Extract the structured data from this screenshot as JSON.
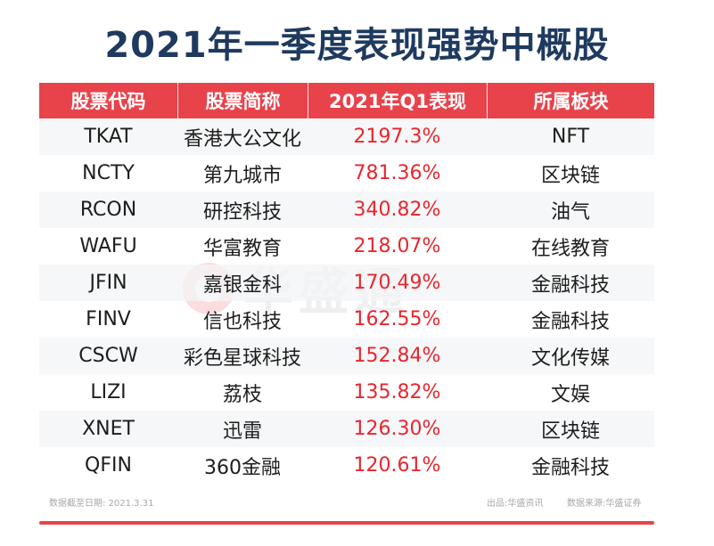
{
  "title": "2021年一季度表现强势中概股",
  "watermark": "华盛通",
  "headers": [
    "股票代码",
    "股票简称",
    "2021年Q1表现",
    "所属板块"
  ],
  "rows": [
    {
      "code": "TKAT",
      "name": "香港大公文化",
      "perf": "2197.3%",
      "sector": "NFT"
    },
    {
      "code": "NCTY",
      "name": "第九城市",
      "perf": "781.36%",
      "sector": "区块链"
    },
    {
      "code": "RCON",
      "name": "研控科技",
      "perf": "340.82%",
      "sector": "油气"
    },
    {
      "code": "WAFU",
      "name": "华富教育",
      "perf": "218.07%",
      "sector": "在线教育"
    },
    {
      "code": "JFIN",
      "name": "嘉银金科",
      "perf": "170.49%",
      "sector": "金融科技"
    },
    {
      "code": "FINV",
      "name": "信也科技",
      "perf": "162.55%",
      "sector": "金融科技"
    },
    {
      "code": "CSCW",
      "name": "彩色星球科技",
      "perf": "152.84%",
      "sector": "文化传媒"
    },
    {
      "code": "LIZI",
      "name": "荔枝",
      "perf": "135.82%",
      "sector": "文娱"
    },
    {
      "code": "XNET",
      "name": "迅雷",
      "perf": "126.30%",
      "sector": "区块链"
    },
    {
      "code": "QFIN",
      "name": "360金融",
      "perf": "120.61%",
      "sector": "金融科技"
    }
  ],
  "footer": {
    "date": "数据截至日期:  2021.3.31",
    "source_out": "出品:华盛资讯",
    "source_data": "数据来源:华盛证券"
  },
  "colors": {
    "title": "#1f3a5f",
    "header_bg": "#e8434b",
    "percent": "#e8262e",
    "stripe": "#f3f4f6"
  }
}
